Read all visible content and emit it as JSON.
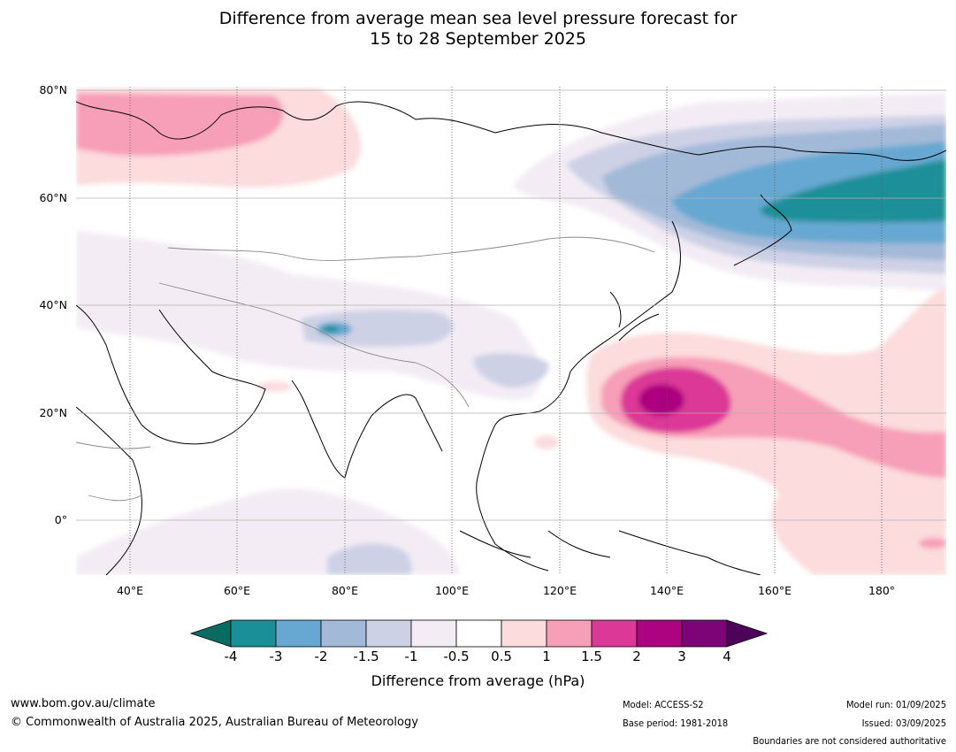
{
  "title": {
    "line1": "Difference from average mean sea level pressure forecast for",
    "line2": "15 to 28 September 2025"
  },
  "map": {
    "lat_labels": [
      "80°N",
      "60°N",
      "40°N",
      "20°N",
      "0°"
    ],
    "lon_labels": [
      "40°E",
      "60°E",
      "80°E",
      "100°E",
      "120°E",
      "140°E",
      "160°E",
      "180°"
    ],
    "lon_range": [
      30,
      192
    ],
    "lat_range": [
      -10,
      81
    ],
    "contours": [
      {
        "level": "+0.5 to +1",
        "color": "#fcdcdc"
      },
      {
        "level": "+1 to +1.5",
        "color": "#f79fb8"
      },
      {
        "level": "+1.5 to +2",
        "color": "#dc3898"
      },
      {
        "level": "+2 to +3",
        "color": "#ad0380"
      },
      {
        "level": "-0.5 to -1",
        "color": "#f3ecf4"
      },
      {
        "level": "-1 to -1.5",
        "color": "#cdd1e6"
      },
      {
        "level": "-1.5 to -2",
        "color": "#a3b9d8"
      },
      {
        "level": "-2 to -3",
        "color": "#66a8d1"
      },
      {
        "level": "-3 to -4",
        "color": "#1b8f98"
      }
    ]
  },
  "colorbar": {
    "ticks": [
      "-4",
      "-3",
      "-2",
      "-1.5",
      "-1",
      "-0.5",
      "0.5",
      "1",
      "1.5",
      "2",
      "3",
      "4"
    ],
    "colors": [
      "#1b8f98",
      "#66a8d1",
      "#a3b9d8",
      "#cdd1e6",
      "#f3ecf4",
      "#ffffff",
      "#fcdcdc",
      "#f79fb8",
      "#dc3898",
      "#ad0380",
      "#7d0476"
    ],
    "low_extend_color": "#0a6b63",
    "high_extend_color": "#4d0359",
    "label": "Difference from average (hPa)"
  },
  "footer": {
    "website": "www.bom.gov.au/climate",
    "copyright": "© Commonwealth of Australia 2025, Australian Bureau of Meteorology",
    "model": "Model: ACCESS-S2",
    "base_period": "Base period: 1981-2018",
    "model_run": "Model run: 01/09/2025",
    "issued": "Issued: 03/09/2025",
    "disclaimer": "Boundaries are not considered authoritative"
  }
}
